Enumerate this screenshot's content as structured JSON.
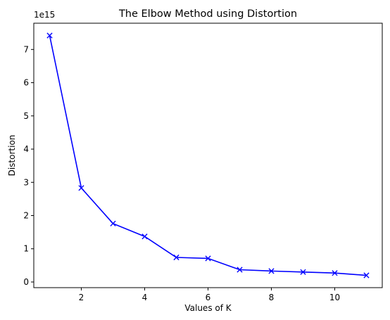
{
  "chart_data": {
    "type": "line",
    "title": "The Elbow Method using Distortion",
    "xlabel": "Values of K",
    "ylabel": "Distortion",
    "y_offset_label": "1e15",
    "x": [
      1,
      2,
      3,
      4,
      5,
      6,
      7,
      8,
      9,
      10,
      11
    ],
    "values": [
      7.42,
      2.83,
      1.76,
      1.37,
      0.74,
      0.71,
      0.37,
      0.33,
      0.3,
      0.27,
      0.2
    ],
    "xlim": [
      0.5,
      11.5
    ],
    "ylim": [
      -0.17,
      7.79
    ],
    "x_ticks": [
      2,
      4,
      6,
      8,
      10
    ],
    "x_tick_labels": [
      "2",
      "4",
      "6",
      "8",
      "10"
    ],
    "y_ticks": [
      0,
      1,
      2,
      3,
      4,
      5,
      6,
      7
    ],
    "y_tick_labels": [
      "0",
      "1",
      "2",
      "3",
      "4",
      "5",
      "6",
      "7"
    ],
    "marker": "x",
    "grid": false,
    "colors": {
      "line": "#0000ff",
      "axes": "#000000",
      "background": "#ffffff"
    }
  }
}
